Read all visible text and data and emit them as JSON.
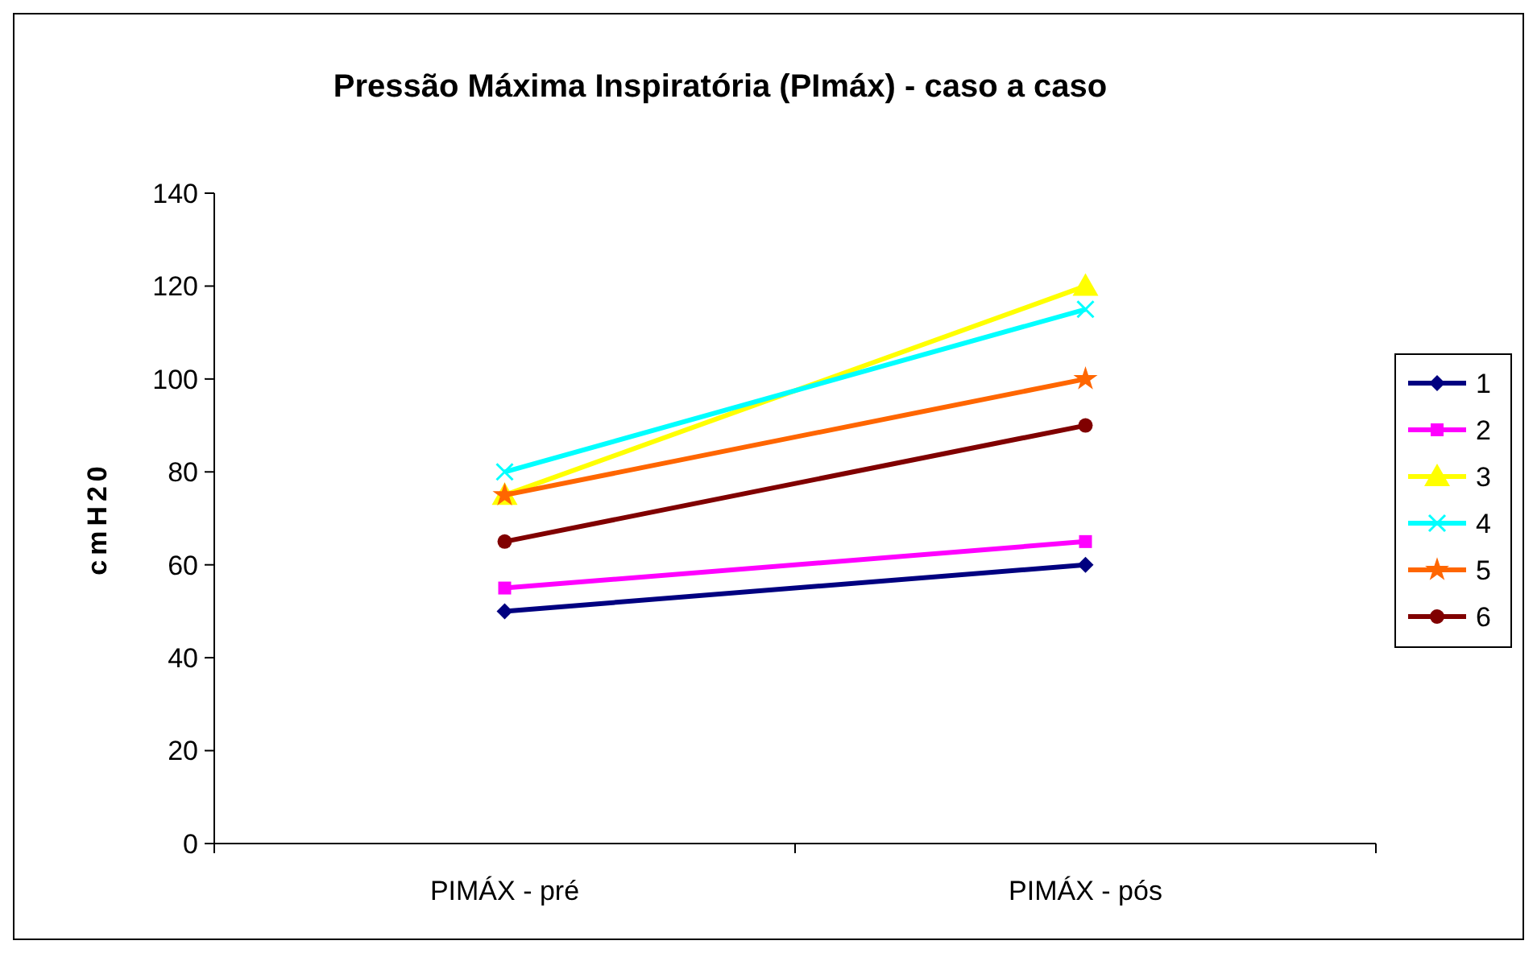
{
  "chart_data": {
    "type": "line",
    "title": "Pressão Máxima Inspiratória (PImáx) - caso a caso",
    "ylabel": "cmH20",
    "categories": [
      "PIMÁX - pré",
      "PIMÁX - pós"
    ],
    "series": [
      {
        "name": "1",
        "color": "#000080",
        "values": [
          50,
          60
        ],
        "marker": "diamond"
      },
      {
        "name": "2",
        "color": "#ff00ff",
        "values": [
          55,
          65
        ],
        "marker": "square"
      },
      {
        "name": "3",
        "color": "#ffff00",
        "values": [
          75,
          120
        ],
        "marker": "triangle"
      },
      {
        "name": "4",
        "color": "#00ffff",
        "values": [
          80,
          115
        ],
        "marker": "cross"
      },
      {
        "name": "5",
        "color": "#ff6600",
        "values": [
          75,
          100
        ],
        "marker": "star"
      },
      {
        "name": "6",
        "color": "#800000",
        "values": [
          65,
          90
        ],
        "marker": "circle"
      }
    ],
    "ylim": [
      0,
      140
    ],
    "yticks": [
      0,
      20,
      40,
      60,
      80,
      100,
      120,
      140
    ],
    "grid": false,
    "legend": "right",
    "line_style": "solid"
  }
}
